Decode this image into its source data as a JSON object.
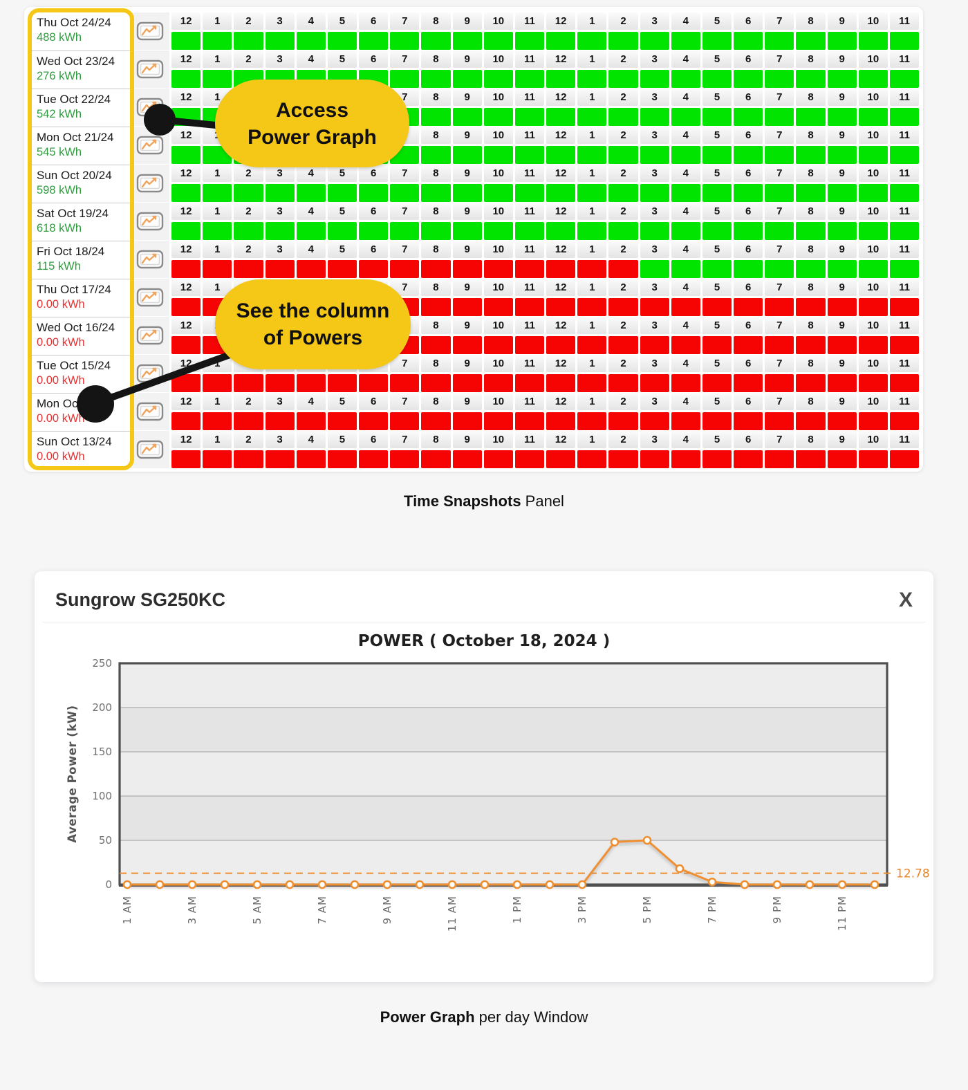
{
  "panel": {
    "hour_labels": [
      "12",
      "1",
      "2",
      "3",
      "4",
      "5",
      "6",
      "7",
      "8",
      "9",
      "10",
      "11",
      "12",
      "1",
      "2",
      "3",
      "4",
      "5",
      "6",
      "7",
      "8",
      "9",
      "10",
      "11"
    ],
    "days": [
      {
        "date": "Thu Oct 24/24",
        "kwh": "488 kWh",
        "kwh_state": "green",
        "cells": "GGGGGGGGGGGGGGGGGGGGGGGG"
      },
      {
        "date": "Wed Oct 23/24",
        "kwh": "276 kWh",
        "kwh_state": "green",
        "cells": "GGGGGGGGGGGGGGGGGGGGGGGG"
      },
      {
        "date": "Tue Oct 22/24",
        "kwh": "542 kWh",
        "kwh_state": "green",
        "cells": "GGGGGGGGGGGGGGGGGGGGGGGG"
      },
      {
        "date": "Mon Oct 21/24",
        "kwh": "545 kWh",
        "kwh_state": "green",
        "cells": "GGGGGGGGGGGGGGGGGGGGGGGG"
      },
      {
        "date": "Sun Oct 20/24",
        "kwh": "598 kWh",
        "kwh_state": "green",
        "cells": "GGGGGGGGGGGGGGGGGGGGGGGG"
      },
      {
        "date": "Sat Oct 19/24",
        "kwh": "618 kWh",
        "kwh_state": "green",
        "cells": "GGGGGGGGGGGGGGGGGGGGGGGG"
      },
      {
        "date": "Fri Oct 18/24",
        "kwh": "115 kWh",
        "kwh_state": "green",
        "cells": "RRRRRRRRRRRRRRRGGGGGGGGG"
      },
      {
        "date": "Thu Oct 17/24",
        "kwh": "0.00 kWh",
        "kwh_state": "red",
        "cells": "RRRRRRRRRRRRRRRRRRRRRRRR"
      },
      {
        "date": "Wed Oct 16/24",
        "kwh": "0.00 kWh",
        "kwh_state": "red",
        "cells": "RRRRRRRRRRRRRRRRRRRRRRRR"
      },
      {
        "date": "Tue Oct 15/24",
        "kwh": "0.00 kWh",
        "kwh_state": "red",
        "cells": "RRRRRRRRRRRRRRRRRRRRRRRR"
      },
      {
        "date": "Mon Oct 14/24",
        "kwh": "0.00 kWh",
        "kwh_state": "red",
        "cells": "RRRRRRRRRRRRRRRRRRRRRRRR"
      },
      {
        "date": "Sun Oct 13/24",
        "kwh": "0.00 kWh",
        "kwh_state": "red",
        "cells": "RRRRRRRRRRRRRRRRRRRRRRRR"
      }
    ],
    "caption_bold": "Time Snapshots",
    "caption_rest": " Panel"
  },
  "callouts": [
    {
      "lines": [
        "Access",
        "Power Graph"
      ]
    },
    {
      "lines": [
        "See the column",
        "of Powers"
      ]
    }
  ],
  "modal": {
    "title": "Sungrow SG250KC",
    "close_label": "X",
    "caption_bold": "Power Graph",
    "caption_rest": " per day Window"
  },
  "colors": {
    "cell_green": "#00e400",
    "cell_red": "#f60404",
    "kwh_green": "#2e9b3e",
    "kwh_red": "#e53232",
    "callout_yellow": "#f5c716",
    "series_orange": "#ee8f32",
    "plot_border": "#4f4f4f"
  },
  "chart_data": {
    "type": "line",
    "title": "POWER ( October 18, 2024 )",
    "ylabel": "Average Power (kW)",
    "ylim": [
      0,
      250
    ],
    "yticks": [
      0,
      50,
      100,
      150,
      200,
      250
    ],
    "x": [
      "1 AM",
      "2 AM",
      "3 AM",
      "4 AM",
      "5 AM",
      "6 AM",
      "7 AM",
      "8 AM",
      "9 AM",
      "10 AM",
      "11 AM",
      "12 PM",
      "1 PM",
      "2 PM",
      "3 PM",
      "4 PM",
      "5 PM",
      "6 PM",
      "7 PM",
      "8 PM",
      "9 PM",
      "10 PM",
      "11 PM",
      "12 AM"
    ],
    "x_label_every": 2,
    "values": [
      0,
      0,
      0,
      0,
      0,
      0,
      0,
      0,
      0,
      0,
      0,
      0,
      0,
      0,
      0,
      48,
      50,
      18,
      3,
      0,
      0,
      0,
      0,
      0
    ],
    "threshold": 12.78,
    "threshold_label": "12.78",
    "legend": "none",
    "grid": true
  }
}
